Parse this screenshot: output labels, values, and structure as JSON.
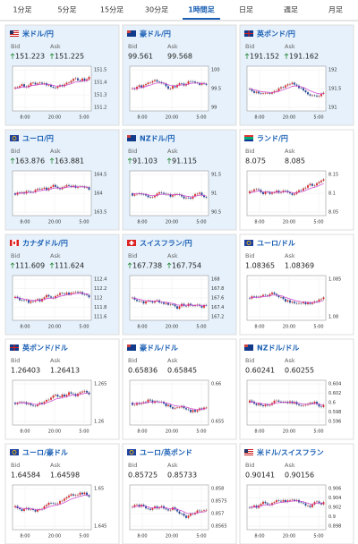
{
  "tabs": [
    "1分足",
    "5分足",
    "15分足",
    "30分足",
    "1時間足",
    "日足",
    "週足",
    "月足"
  ],
  "active_tab": 4,
  "bid_label": "Bid",
  "ask_label": "Ask",
  "cards": [
    {
      "name": "米ドル/円",
      "flag": "us",
      "highlighted": true,
      "arrow": "up",
      "bid": "151.223",
      "ask": "151.225",
      "yticks": [
        "151.5",
        "151.4",
        "151.3",
        "151.2"
      ],
      "xticks": [
        "8:00",
        "20:00",
        "5:00"
      ]
    },
    {
      "name": "豪ドル/円",
      "flag": "au",
      "highlighted": true,
      "arrow": null,
      "bid": "99.561",
      "ask": "99.568",
      "yticks": [
        "100",
        "99.5",
        "99"
      ],
      "xticks": [
        "8:00",
        "20:00",
        "5:00"
      ]
    },
    {
      "name": "英ポンド/円",
      "flag": "gb",
      "highlighted": true,
      "arrow": "up",
      "bid": "191.152",
      "ask": "191.162",
      "yticks": [
        "192",
        "191.5",
        "191"
      ],
      "xticks": [
        "8:00",
        "20:00",
        "5:00"
      ]
    },
    {
      "name": "ユーロ/円",
      "flag": "eu",
      "highlighted": true,
      "arrow": "up",
      "bid": "163.876",
      "ask": "163.881",
      "yticks": [
        "164.5",
        "164",
        "163.5"
      ],
      "xticks": [
        "8:00",
        "20:00",
        "5:00"
      ]
    },
    {
      "name": "NZドル/円",
      "flag": "nz",
      "highlighted": true,
      "arrow": "up",
      "bid": "91.103",
      "ask": "91.115",
      "yticks": [
        "91.5",
        "91",
        "90.5"
      ],
      "xticks": [
        "8:00",
        "20:00",
        "5:00"
      ]
    },
    {
      "name": "ランド/円",
      "flag": "za",
      "highlighted": false,
      "arrow": null,
      "bid": "8.075",
      "ask": "8.085",
      "yticks": [
        "8.15",
        "8.1",
        "8.05"
      ],
      "xticks": [
        "8:00",
        "20:00",
        "5:00"
      ]
    },
    {
      "name": "カナダドル/円",
      "flag": "ca",
      "highlighted": true,
      "arrow": "up",
      "bid": "111.609",
      "ask": "111.624",
      "yticks": [
        "112.4",
        "112.2",
        "112",
        "111.8",
        "111.6"
      ],
      "xticks": [
        "8:00",
        "20:00",
        "5:00"
      ]
    },
    {
      "name": "スイスフラン/円",
      "flag": "ch",
      "highlighted": true,
      "arrow": "up",
      "bid": "167.738",
      "ask": "167.754",
      "yticks": [
        "168",
        "167.8",
        "167.6",
        "167.4",
        "167.2"
      ],
      "xticks": [
        "8:00",
        "20:00",
        "5:00"
      ]
    },
    {
      "name": "ユーロ/ドル",
      "flag": "eu",
      "highlighted": false,
      "arrow": null,
      "bid": "1.08365",
      "ask": "1.08369",
      "yticks": [
        "1.085",
        "1.08"
      ],
      "xticks": [
        "8:00",
        "20:00",
        "5:00"
      ]
    },
    {
      "name": "英ポンド/ドル",
      "flag": "gb",
      "highlighted": false,
      "arrow": null,
      "bid": "1.26403",
      "ask": "1.26413",
      "yticks": [
        "1.265",
        "1.26"
      ],
      "xticks": [
        "8:00",
        "20:00",
        "5:00"
      ]
    },
    {
      "name": "豪ドル/ドル",
      "flag": "au",
      "highlighted": false,
      "arrow": null,
      "bid": "0.65836",
      "ask": "0.65845",
      "yticks": [
        "0.66",
        "0.655"
      ],
      "xticks": [
        "8:00",
        "20:00",
        "5:00"
      ]
    },
    {
      "name": "NZドル/ドル",
      "flag": "nz",
      "highlighted": false,
      "arrow": null,
      "bid": "0.60241",
      "ask": "0.60255",
      "yticks": [
        "0.604",
        "0.602",
        "0.6",
        "0.598",
        "0.596"
      ],
      "xticks": [
        "8:00",
        "20:00",
        "5:00"
      ]
    },
    {
      "name": "ユーロ/豪ドル",
      "flag": "eu",
      "highlighted": false,
      "arrow": null,
      "bid": "1.64584",
      "ask": "1.64598",
      "yticks": [
        "1.65",
        "1.645"
      ],
      "xticks": [
        "8:00",
        "20:00",
        "5:00"
      ]
    },
    {
      "name": "ユーロ/英ポンド",
      "flag": "eu",
      "highlighted": false,
      "arrow": null,
      "bid": "0.85725",
      "ask": "0.85733",
      "yticks": [
        "0.858",
        "0.8575",
        "0.857",
        "0.8565"
      ],
      "xticks": [
        "8:00",
        "20:00",
        "5:00"
      ]
    },
    {
      "name": "米ドル/スイスフラン",
      "flag": "us",
      "highlighted": false,
      "arrow": null,
      "bid": "0.90141",
      "ask": "0.90156",
      "yticks": [
        "0.906",
        "0.904",
        "0.902",
        "0.9",
        "0.898"
      ],
      "xticks": [
        "8:00",
        "20:00",
        "5:00"
      ]
    }
  ]
}
